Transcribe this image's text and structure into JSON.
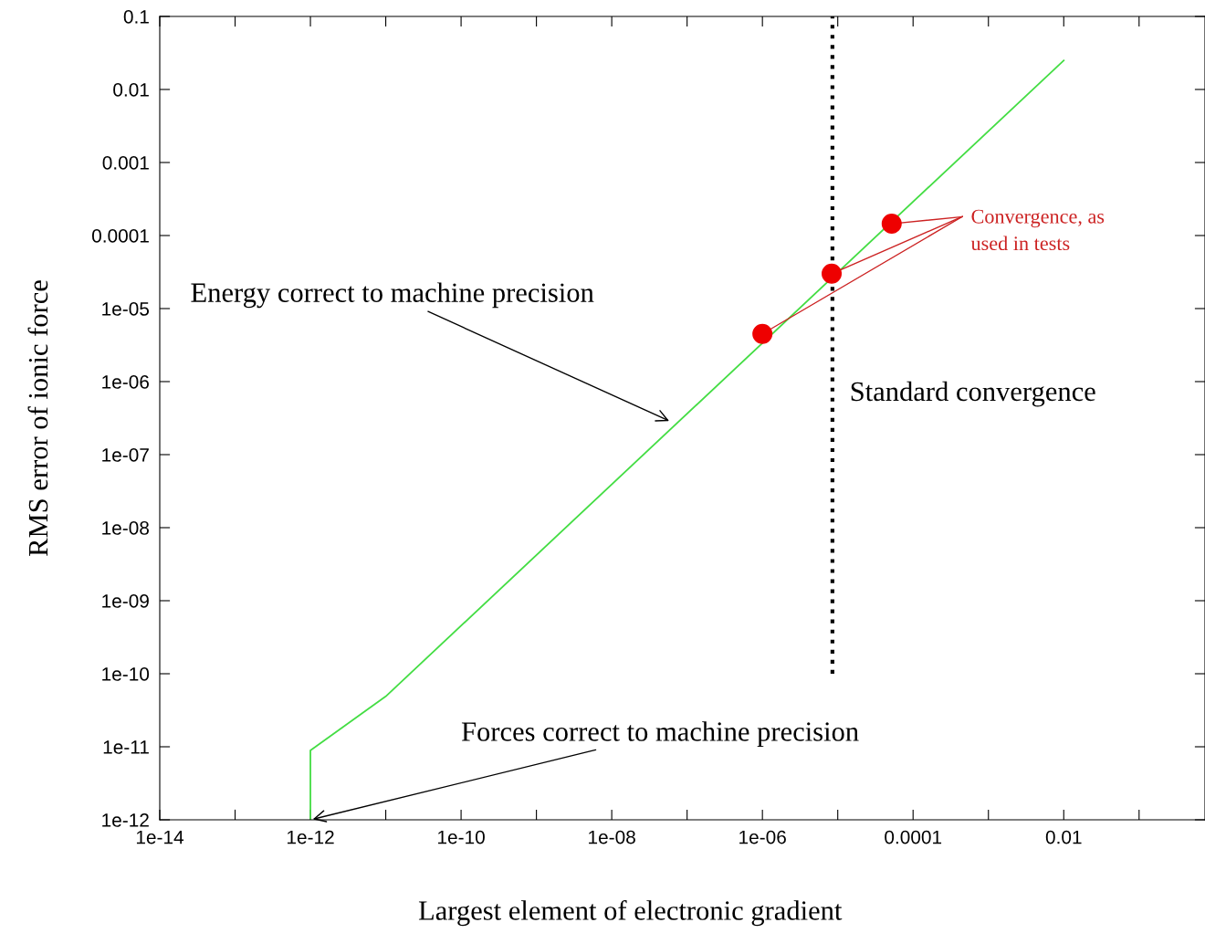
{
  "chart_data": {
    "type": "line",
    "xlabel": "Largest element of electronic gradient",
    "ylabel": "RMS error of ionic force",
    "log": "xy",
    "grid": false,
    "xlim": [
      1e-14,
      0.75
    ],
    "ylim": [
      1e-12,
      0.1
    ],
    "xticks": [
      {
        "value": 1e-14,
        "label": "1e-14"
      },
      {
        "value": 1e-13,
        "label": null
      },
      {
        "value": 1e-12,
        "label": "1e-12"
      },
      {
        "value": 1e-11,
        "label": null
      },
      {
        "value": 1e-10,
        "label": "1e-10"
      },
      {
        "value": 1e-09,
        "label": null
      },
      {
        "value": 1e-08,
        "label": "1e-08"
      },
      {
        "value": 1e-07,
        "label": null
      },
      {
        "value": 1e-06,
        "label": "1e-06"
      },
      {
        "value": 1e-05,
        "label": null
      },
      {
        "value": 0.0001,
        "label": "0.0001"
      },
      {
        "value": 0.001,
        "label": null
      },
      {
        "value": 0.01,
        "label": "0.01"
      },
      {
        "value": 0.1,
        "label": null
      }
    ],
    "yticks": [
      {
        "value": 1e-12,
        "label": "1e-12"
      },
      {
        "value": 1e-11,
        "label": "1e-11"
      },
      {
        "value": 1e-10,
        "label": "1e-10"
      },
      {
        "value": 1e-09,
        "label": "1e-09"
      },
      {
        "value": 1e-08,
        "label": "1e-08"
      },
      {
        "value": 1e-07,
        "label": "1e-07"
      },
      {
        "value": 1e-06,
        "label": "1e-06"
      },
      {
        "value": 1e-05,
        "label": "1e-05"
      },
      0.0001,
      0.001,
      0.01,
      0.1
    ],
    "series": [
      {
        "color": "#44dd44",
        "line_style": "solid",
        "marker": "none",
        "x": [
          1e-12,
          1e-12,
          1e-11,
          0.01
        ],
        "values": [
          1e-12,
          8.9e-12,
          4.9e-11,
          0.025
        ]
      },
      {
        "color": "#000000",
        "line_style": "dotted",
        "marker": "none",
        "x": [
          8.5e-06,
          8.5e-06
        ],
        "values": [
          1e-10,
          0.1
        ]
      },
      {
        "type": "scatter",
        "color": "#ee0000",
        "marker": "circle",
        "x": [
          1e-06,
          8.3e-06,
          5.2e-05
        ],
        "values": [
          4.5e-06,
          3e-05,
          0.000145
        ]
      }
    ],
    "annotations": [
      {
        "text": "Energy correct to machine precision",
        "x": 6.2e-08,
        "y": 2.8e-07
      },
      {
        "text": "Forces correct to machine precision",
        "x": 1e-12,
        "y": 1e-12
      },
      {
        "text": "Convergence, as\nused in tests",
        "x": 5.2e-05,
        "y": 0.000145
      },
      "Standard convergence"
    ]
  }
}
